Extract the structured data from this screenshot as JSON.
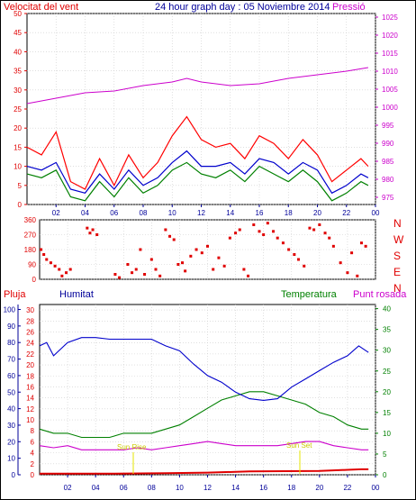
{
  "header": {
    "wind_label": "Velocitat del vent",
    "title": "24 hour graph day : 05 Noviembre 2014",
    "pressure_label": "Pressió"
  },
  "colors": {
    "wind_gust": "#ff0000",
    "wind_avg": "#0000cc",
    "wind_mid": "#008000",
    "pressure": "#cc00cc",
    "direction": "#e00000",
    "humidity": "#0000cc",
    "temperature": "#008000",
    "dewpoint": "#cc00cc",
    "rain": "#e00000",
    "axis_blue": "#000099",
    "grid": "#cccccc"
  },
  "bottom_header": {
    "rain_label": "Pluja",
    "humidity_label": "Humitat",
    "temperature_label": "Temperatura",
    "dewpoint_label": "Punt rosada"
  },
  "annotations": {
    "sunrise": "Sun Rise",
    "sunset": "Sun Set"
  },
  "chart_data": [
    {
      "type": "line",
      "name": "wind_pressure",
      "x_ticks": [
        "02",
        "04",
        "06",
        "08",
        "10",
        "12",
        "14",
        "16",
        "18",
        "20",
        "22",
        "00"
      ],
      "left_ticks": [
        0,
        5,
        10,
        15,
        20,
        25,
        30,
        35,
        40,
        45,
        50
      ],
      "right_ticks": [
        975,
        980,
        985,
        990,
        995,
        1000,
        1005,
        1010,
        1015,
        1020,
        1025
      ],
      "ylim_left": [
        0,
        50
      ],
      "ylim_right": [
        973,
        1026
      ],
      "pressure": {
        "x": [
          0,
          2,
          4,
          6,
          8,
          10,
          11,
          12,
          14,
          16,
          18,
          20,
          22,
          23.5
        ],
        "y": [
          1001,
          1002.5,
          1004,
          1004.5,
          1006,
          1007,
          1008,
          1007,
          1006,
          1006.5,
          1008,
          1009,
          1010,
          1011
        ]
      },
      "wind_gust": {
        "x": [
          0,
          1,
          2,
          3,
          4,
          5,
          6,
          7,
          8,
          9,
          10,
          11,
          12,
          13,
          14,
          15,
          16,
          17,
          18,
          19,
          20,
          21,
          22,
          23,
          23.5
        ],
        "y": [
          15,
          13,
          19,
          6,
          4,
          12,
          5,
          13,
          7,
          11,
          18,
          23,
          17,
          15,
          16,
          12,
          18,
          16,
          12,
          17,
          13,
          6,
          9,
          12,
          10
        ]
      },
      "wind_avg": {
        "x": [
          0,
          1,
          2,
          3,
          4,
          5,
          6,
          7,
          8,
          9,
          10,
          11,
          12,
          13,
          14,
          15,
          16,
          17,
          18,
          19,
          20,
          21,
          22,
          23,
          23.5
        ],
        "y": [
          10,
          9,
          11,
          4,
          3,
          8,
          4,
          9,
          5,
          7,
          11,
          14,
          10,
          10,
          11,
          8,
          12,
          11,
          8,
          11,
          9,
          3,
          5,
          8,
          7
        ]
      },
      "wind_mid": {
        "x": [
          0,
          1,
          2,
          3,
          4,
          5,
          6,
          7,
          8,
          9,
          10,
          11,
          12,
          13,
          14,
          15,
          16,
          17,
          18,
          19,
          20,
          21,
          22,
          23,
          23.5
        ],
        "y": [
          8,
          7,
          9,
          2,
          1,
          6,
          2,
          7,
          3,
          5,
          9,
          11,
          8,
          7,
          9,
          6,
          10,
          8,
          6,
          9,
          6,
          1,
          3,
          6,
          5
        ]
      }
    },
    {
      "type": "scatter",
      "name": "wind_direction",
      "left_ticks": [
        0,
        90,
        180,
        270,
        360
      ],
      "right_ticks": [
        "N",
        "W",
        "S",
        "E",
        "N"
      ],
      "ylim": [
        0,
        360
      ],
      "x": [
        0.1,
        0.3,
        0.5,
        0.8,
        1.1,
        1.4,
        1.6,
        1.9,
        2.2,
        3.4,
        3.6,
        3.8,
        4.1,
        5.4,
        5.7,
        6.3,
        6.6,
        6.9,
        7.2,
        7.5,
        8.0,
        8.3,
        8.6,
        9.0,
        9.3,
        9.6,
        9.9,
        10.2,
        10.4,
        10.8,
        11.2,
        11.6,
        12.0,
        12.4,
        12.8,
        13.2,
        13.6,
        14.0,
        14.3,
        14.6,
        14.9,
        15.3,
        15.7,
        16.0,
        16.3,
        16.7,
        17.0,
        17.4,
        17.8,
        18.2,
        18.5,
        18.9,
        19.3,
        19.6,
        20.0,
        20.4,
        20.7,
        21.0,
        21.5,
        22.0,
        22.3,
        22.7,
        23.0,
        23.3
      ],
      "y": [
        180,
        150,
        120,
        100,
        80,
        60,
        20,
        40,
        60,
        310,
        280,
        300,
        270,
        30,
        10,
        90,
        40,
        60,
        180,
        30,
        120,
        60,
        20,
        300,
        260,
        240,
        90,
        100,
        50,
        140,
        180,
        160,
        200,
        60,
        130,
        80,
        250,
        280,
        300,
        60,
        20,
        330,
        290,
        270,
        340,
        290,
        250,
        220,
        180,
        150,
        120,
        80,
        310,
        300,
        330,
        280,
        250,
        200,
        100,
        40,
        160,
        20,
        220,
        200
      ]
    },
    {
      "type": "line",
      "name": "humidity_temperature",
      "x_ticks": [
        "02",
        "04",
        "06",
        "08",
        "10",
        "12",
        "14",
        "16",
        "18",
        "20",
        "22",
        "00"
      ],
      "rain_ticks": [
        0,
        2,
        4,
        6,
        8,
        10,
        12,
        14,
        16,
        18,
        20,
        22,
        24,
        26,
        28,
        30
      ],
      "humidity_ticks": [
        0,
        10,
        20,
        30,
        40,
        50,
        60,
        70,
        80,
        90,
        100
      ],
      "temp_ticks": [
        0,
        5,
        10,
        15,
        20,
        25,
        30,
        35,
        40
      ],
      "ylim_rain": [
        0,
        31
      ],
      "ylim_humidity": [
        0,
        103
      ],
      "ylim_temperature": [
        0,
        41
      ],
      "humidity": {
        "x": [
          0,
          0.5,
          1,
          2,
          3,
          4,
          5,
          6,
          7,
          8,
          9,
          10,
          11,
          12,
          13,
          14,
          15,
          16,
          17,
          18,
          19,
          20,
          21,
          22,
          22.8,
          23.5
        ],
        "y": [
          78,
          80,
          72,
          80,
          83,
          83,
          82,
          82,
          82,
          82,
          78,
          75,
          67,
          60,
          56,
          50,
          46,
          45,
          46,
          53,
          58,
          63,
          68,
          72,
          78,
          74
        ]
      },
      "temperature": {
        "x": [
          0,
          1,
          2,
          3,
          4,
          5,
          6,
          7,
          8,
          9,
          10,
          11,
          12,
          13,
          14,
          15,
          16,
          17,
          18,
          19,
          20,
          21,
          22,
          23,
          23.5
        ],
        "y": [
          11,
          10,
          10,
          9,
          9,
          9,
          10,
          10,
          10,
          11,
          12,
          14,
          16,
          18,
          19,
          20,
          20,
          19,
          18,
          17,
          15,
          14,
          12,
          11,
          11
        ]
      },
      "dewpoint": {
        "x": [
          0,
          1,
          2,
          3,
          4,
          5,
          6,
          7,
          8,
          9,
          10,
          11,
          12,
          13,
          14,
          15,
          16,
          17,
          18,
          19,
          20,
          21,
          22,
          23,
          23.5
        ],
        "y": [
          7,
          6.5,
          7,
          6,
          6,
          6,
          6,
          6.5,
          6,
          6.5,
          7,
          7.5,
          8,
          7.5,
          7,
          7,
          7,
          7,
          7.5,
          8,
          8,
          7,
          6.5,
          6,
          6
        ]
      },
      "rain": {
        "x": [
          0,
          0.5,
          1,
          5,
          9,
          12,
          15,
          20,
          22,
          23,
          23.5
        ],
        "y": [
          0.2,
          0.2,
          0.2,
          0.2,
          0.3,
          0.4,
          0.6,
          0.7,
          0.9,
          1.0,
          1.0
        ]
      }
    }
  ]
}
